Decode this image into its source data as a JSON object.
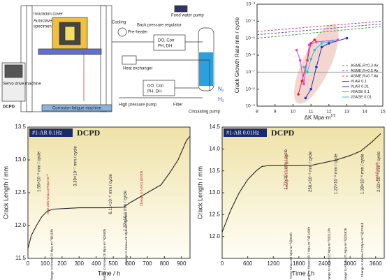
{
  "diagram": {
    "insulation_cover": "Insulation cover",
    "autoclave": "Autoclave",
    "specimen": "specimen",
    "cooling": "Cooling",
    "pre_heater": "Pre-heater",
    "back_pressure": "Back pressure regulator",
    "sensor_top": [
      "DO, Con",
      "PH, DH"
    ],
    "feed_pump": "Feed water pump",
    "heat_exchanger": "Heat exchanger",
    "high_pressure_pump": "High pressure pump",
    "sensor_bottom": [
      "DO, Con",
      "PH, DH"
    ],
    "filter": "Filter",
    "circulating_pump": "Circulating pump",
    "n2": "N₂",
    "h2": "H₂",
    "servo": "Servo drive machine",
    "dcpd": "DCPD",
    "machine": "Corrosion fatigue machine"
  },
  "chart_data": [
    {
      "type": "scatter-line",
      "ylabel": "Crack Growth Rate mm / cycle",
      "xlabel": "ΔK Mpa·m",
      "xlabel_sup": "1/2",
      "log_y": true,
      "xlim": [
        8,
        15
      ],
      "xticks": [
        8,
        9,
        10,
        11,
        12,
        13,
        14,
        15
      ],
      "ylim": [
        1e-09,
        0.001
      ],
      "yticks": [
        {
          "value": 1e-09,
          "label": "10⁻⁹"
        },
        {
          "value": 1e-08,
          "label": "10⁻⁸"
        },
        {
          "value": 1e-07,
          "label": "10⁻⁷"
        },
        {
          "value": 1e-06,
          "label": "10⁻⁶"
        },
        {
          "value": 1e-05,
          "label": "10⁻⁵"
        },
        {
          "value": 0.0001,
          "label": "10⁻⁴"
        },
        {
          "value": 0.001,
          "label": "10⁻³"
        }
      ],
      "reference_line": 1e-07,
      "legend": "lower right",
      "series": [
        {
          "name": "ASME,R=0.3 Air",
          "color": "#3a9a3a",
          "dashed": true,
          "x": [
            8,
            15
          ],
          "values": [
            1e-05,
            5e-05
          ]
        },
        {
          "name": "ASME,R=0.5 Air",
          "color": "#6a4aa8",
          "dashed": true,
          "x": [
            8,
            15
          ],
          "values": [
            1.6e-05,
            7e-05
          ]
        },
        {
          "name": "ASME,R=0.7 Air",
          "color": "#d04060",
          "dashed": true,
          "x": [
            8,
            15
          ],
          "values": [
            2.5e-05,
            0.0001
          ]
        },
        {
          "name": "#1AR  0.1",
          "color": "#e02020",
          "x": [
            10.3,
            10.5,
            10.8,
            11.0,
            11.2
          ],
          "values": [
            5e-09,
            3e-08,
            5e-07,
            5e-06,
            8e-06
          ]
        },
        {
          "name": "#1AR  0.01",
          "color": "#2030d0",
          "x": [
            10.7,
            11.0,
            11.3,
            11.6,
            12.0,
            13.0
          ],
          "values": [
            3e-09,
            1e-08,
            2e-07,
            3e-06,
            5e-06,
            1e-05
          ]
        },
        {
          "name": "#2AGE  0.1",
          "color": "#e040e0",
          "x": [
            10.2,
            10.4,
            10.6,
            10.9,
            11.3,
            12.5
          ],
          "values": [
            2e-06,
            5e-07,
            2e-08,
            4e-06,
            6e-06,
            8e-06
          ]
        },
        {
          "name": "#2AGE  0.01",
          "color": "#20c8d8",
          "x": [
            10.6,
            10.8,
            11.0,
            11.2,
            11.6,
            12.2
          ],
          "values": [
            2e-07,
            1e-07,
            6e-07,
            2e-06,
            5e-06,
            7e-06
          ]
        }
      ]
    },
    {
      "type": "line",
      "badge": "#1-AR  0.1Hz",
      "title": "DCPD",
      "xlabel": "Time / h",
      "ylabel": "Crack Length / mm",
      "color": "#222222",
      "xlim": [
        0,
        950
      ],
      "xticks": [
        0,
        100,
        200,
        300,
        400,
        500,
        600,
        700,
        800,
        900
      ],
      "ylim": [
        11.5,
        13.5
      ],
      "yticks": [
        11.5,
        {
          "value": 12,
          "label": "12.0"
        },
        12.5,
        {
          "value": 13,
          "label": "13.0"
        },
        13.5
      ],
      "x": [
        0,
        20,
        50,
        80,
        113,
        150,
        300,
        450,
        560,
        600,
        700,
        780,
        830,
        880,
        930,
        950
      ],
      "values": [
        11.65,
        11.85,
        12.0,
        12.13,
        12.22,
        12.25,
        12.27,
        12.27,
        12.28,
        12.35,
        12.5,
        12.62,
        12.8,
        13.0,
        13.3,
        13.36
      ],
      "rates": [
        "1.55×10⁻⁶ mm / cycle",
        "3.39×10⁻⁷ mm / cycle",
        "6.11×10⁻⁶ mm / cycle",
        "1.32×10⁻⁵ mm / cycle"
      ],
      "events": [
        "Start with Kmax=27Mpa·m¹ᐟ²",
        "Change to Kmax=23 Mpa·m¹ᐟ²@113h",
        "Change to Kmax=25 Mpa·m¹ᐟ²@560h",
        "Change to Kmax=28 Mpa·m¹ᐟ²@780h",
        "Change to f=0.01 @930h"
      ]
    },
    {
      "type": "line",
      "badge": "#1-AR  0.01Hz",
      "title": "DCPD",
      "xlabel": "Time / h",
      "ylabel": "Crack Length / mm",
      "color": "#222222",
      "xlim": [
        0,
        3800
      ],
      "xticks": [
        0,
        600,
        1200,
        1800,
        2400,
        3000,
        3600
      ],
      "ylim": [
        11.5,
        14.5
      ],
      "yticks": [
        {
          "value": 12,
          "label": "12.0"
        },
        12.5,
        {
          "value": 13,
          "label": "13.0"
        },
        13.5,
        {
          "value": 14,
          "label": "14.0"
        },
        14.5
      ],
      "x": [
        0,
        200,
        400,
        600,
        800,
        932,
        1100,
        1404,
        1800,
        2113,
        2400,
        2682,
        3000,
        3244,
        3500,
        3720
      ],
      "values": [
        12.1,
        12.6,
        13.0,
        13.3,
        13.5,
        13.6,
        13.62,
        13.62,
        13.62,
        13.63,
        13.69,
        13.75,
        13.85,
        13.95,
        14.15,
        14.35
      ],
      "rates": [
        "1.77×10⁻⁶ mm / cycle",
        "258.×10⁻⁸ mm / cycle",
        "1.22×10⁻⁶ mm / cycle",
        "1.38×10⁻⁶ mm / cycle",
        "2.92×10⁻⁶ mm / cycle"
      ],
      "events": [
        "Change to f=0.01 @930h",
        "Keep Kmax=23 Mpa·m¹ᐟ²@932h",
        "Change to Kmax=20.7 Mpa·m¹ᐟ²@1404h",
        "Change to Kmax=22 Mpa·m¹ᐟ²@2113h",
        "Change to Kmax=21 Mpa·m¹ᐟ²@2682h",
        "Change to Kmax=23 Mpa·m¹ᐟ²@3244h",
        "End @3720h"
      ]
    }
  ]
}
